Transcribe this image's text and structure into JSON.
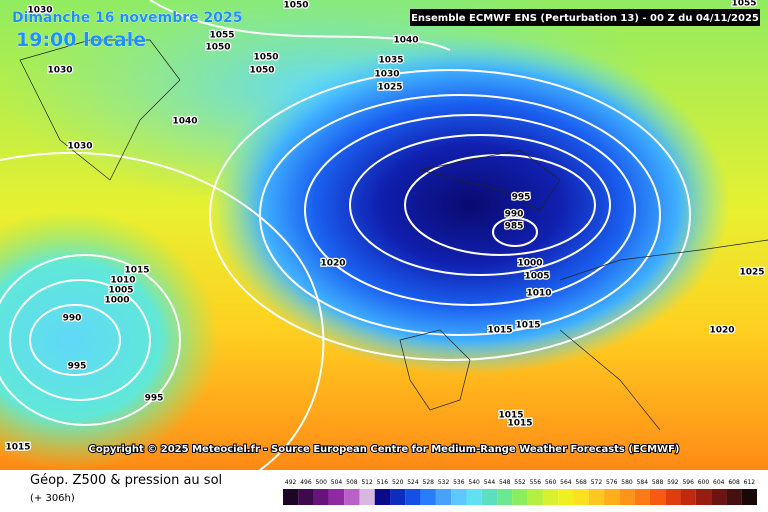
{
  "header": {
    "date": "Dimanche 16 novembre 2025",
    "local_time": "19:00 locale",
    "model": "Ensemble ECMWF ENS  (Perturbation 13)  - 00 Z du 04/11/2025"
  },
  "copyright": "Copyright © 2025 Meteociel.fr - Source European Centre for Medium-Range Weather Forecasts (ECMWF)",
  "footer": {
    "title": "Géop. Z500 & pression au sol",
    "lead": "(+ 306h)"
  },
  "colorbar": {
    "values": [
      492,
      496,
      500,
      504,
      508,
      512,
      516,
      520,
      524,
      528,
      532,
      536,
      540,
      544,
      548,
      552,
      556,
      560,
      564,
      568,
      572,
      576,
      580,
      584,
      588,
      592,
      596,
      600,
      604,
      608,
      612
    ],
    "colors": [
      "#1e0526",
      "#3e0a4e",
      "#66137a",
      "#8f2aa3",
      "#b860c4",
      "#d8b8e0",
      "#0a0a8c",
      "#0e2cc0",
      "#1450e6",
      "#2a7cff",
      "#4aa0ff",
      "#5cc8ff",
      "#60e0f0",
      "#5ae0c0",
      "#6ee890",
      "#8cec60",
      "#b4f040",
      "#d8f030",
      "#f0f020",
      "#ffe020",
      "#ffc820",
      "#ffae1a",
      "#ff9418",
      "#ff7a14",
      "#f85a10",
      "#e03c10",
      "#c02810",
      "#981c10",
      "#6e1410",
      "#441010",
      "#180808"
    ]
  },
  "isobar_labels": [
    "1030",
    "1050",
    "1055",
    "1050",
    "1050",
    "1050",
    "1040",
    "1035",
    "1030",
    "1025",
    "1030",
    "1040",
    "1030",
    "995",
    "990",
    "985",
    "1000",
    "1005",
    "1010",
    "1015",
    "1015",
    "1020",
    "1015",
    "1010",
    "1005",
    "1000",
    "990",
    "995",
    "995",
    "1015",
    "1015",
    "1015",
    "1025",
    "1020",
    "1055"
  ]
}
